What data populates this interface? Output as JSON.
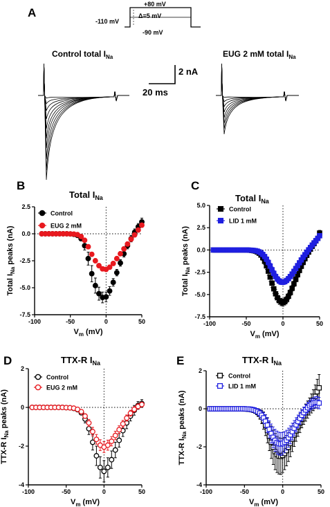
{
  "panelA": {
    "label": "A",
    "protocol": {
      "hold": "-110 mV",
      "prepulse": "-90 mV",
      "top": "+80 mV",
      "step": "Δ=5 mV"
    },
    "trace_left": {
      "title": "Control total I",
      "sub": "Na"
    },
    "trace_right": {
      "title": "EUG 2 mM total I",
      "sub": "Na"
    },
    "scale": {
      "current": "2 nA",
      "time": "20 ms"
    }
  },
  "chart_data": [
    {
      "panel": "B",
      "type": "scatter",
      "title": "Total I",
      "title_sub": "Na",
      "xlabel": "V",
      "xlabel_sub": "m",
      "xlabel_unit": " (mV)",
      "ylabel": "Total I",
      "ylabel_sub": "Na",
      "ylabel_unit": " peaks (nA)",
      "xlim": [
        -100,
        50
      ],
      "ylim": [
        -7.5,
        2.5
      ],
      "xticks": [
        -100,
        -50,
        0,
        50
      ],
      "yticks": [
        -7.5,
        -5.0,
        -2.5,
        0.0,
        2.5
      ],
      "ytick_labels": [
        "-7.5",
        "-5.0",
        "-2.5",
        "0.0",
        "2.5"
      ],
      "legend_position": "top-left",
      "grid": false,
      "zero_lines": true,
      "x": [
        -90,
        -85,
        -80,
        -75,
        -70,
        -65,
        -60,
        -55,
        -50,
        -45,
        -40,
        -35,
        -30,
        -25,
        -20,
        -15,
        -10,
        -5,
        0,
        5,
        10,
        15,
        20,
        25,
        30,
        35,
        40,
        45,
        50
      ],
      "series": [
        {
          "name": "Control",
          "color": "#000000",
          "marker": "circle-filled",
          "values": [
            0,
            0,
            0,
            0,
            0,
            0,
            0,
            0,
            -0.01,
            -0.05,
            -0.15,
            -0.45,
            -1.1,
            -2.3,
            -3.7,
            -4.8,
            -5.55,
            -5.9,
            -5.85,
            -5.3,
            -4.5,
            -3.6,
            -2.7,
            -1.85,
            -1.1,
            -0.45,
            0.15,
            0.65,
            1.1
          ],
          "err": [
            0,
            0,
            0,
            0,
            0,
            0,
            0,
            0,
            0.01,
            0.03,
            0.08,
            0.2,
            0.4,
            0.6,
            0.75,
            0.7,
            0.6,
            0.5,
            0.45,
            0.4,
            0.35,
            0.3,
            0.3,
            0.3,
            0.3,
            0.3,
            0.3,
            0.3,
            0.35
          ]
        },
        {
          "name": "EUG 2 mM",
          "color": "#e8191f",
          "marker": "circle-filled",
          "values": [
            0,
            0,
            0,
            0,
            0,
            0,
            0,
            0,
            -0.01,
            -0.03,
            -0.08,
            -0.25,
            -0.6,
            -1.2,
            -1.9,
            -2.5,
            -2.95,
            -3.25,
            -3.3,
            -3.1,
            -2.75,
            -2.3,
            -1.85,
            -1.4,
            -0.95,
            -0.5,
            -0.1,
            0.35,
            0.8
          ],
          "err": [
            0,
            0,
            0,
            0,
            0,
            0,
            0,
            0,
            0.01,
            0.02,
            0.05,
            0.1,
            0.15,
            0.2,
            0.2,
            0.2,
            0.2,
            0.2,
            0.2,
            0.2,
            0.2,
            0.2,
            0.2,
            0.2,
            0.2,
            0.2,
            0.2,
            0.2,
            0.2
          ]
        }
      ]
    },
    {
      "panel": "C",
      "type": "scatter",
      "title": "Total I",
      "title_sub": "Na",
      "xlabel": "V",
      "xlabel_sub": "m",
      "xlabel_unit": " (mV)",
      "ylabel": "Total I",
      "ylabel_sub": "Na",
      "ylabel_unit": " peaks (nA)",
      "xlim": [
        -100,
        50
      ],
      "ylim": [
        -7.5,
        5.0
      ],
      "xticks": [
        -100,
        -50,
        0,
        50
      ],
      "yticks": [
        -7.5,
        -5.0,
        -2.5,
        0.0,
        2.5,
        5.0
      ],
      "ytick_labels": [
        "-7.5",
        "-5.0",
        "-2.5",
        "0.0",
        "2.5",
        "5.0"
      ],
      "legend_position": "top-left",
      "grid": false,
      "zero_lines": true,
      "x": [
        -95,
        -92.5,
        -90,
        -87.5,
        -85,
        -82.5,
        -80,
        -77.5,
        -75,
        -72.5,
        -70,
        -67.5,
        -65,
        -62.5,
        -60,
        -57.5,
        -55,
        -52.5,
        -50,
        -47.5,
        -45,
        -42.5,
        -40,
        -37.5,
        -35,
        -32.5,
        -30,
        -27.5,
        -25,
        -22.5,
        -20,
        -17.5,
        -15,
        -12.5,
        -10,
        -7.5,
        -5,
        -2.5,
        0,
        2.5,
        5,
        7.5,
        10,
        12.5,
        15,
        17.5,
        20,
        22.5,
        25,
        27.5,
        30,
        32.5,
        35,
        37.5,
        40,
        42.5,
        45,
        47.5,
        50
      ],
      "series": [
        {
          "name": "Control",
          "color": "#000000",
          "marker": "square-filled",
          "values": [
            0,
            0,
            0,
            0,
            0,
            0,
            0,
            0,
            0,
            0,
            0,
            0,
            0,
            0,
            0,
            0,
            0,
            0,
            -0.01,
            -0.02,
            -0.03,
            -0.05,
            -0.08,
            -0.13,
            -0.22,
            -0.36,
            -0.57,
            -0.87,
            -1.27,
            -1.78,
            -2.38,
            -3.04,
            -3.72,
            -4.36,
            -4.92,
            -5.36,
            -5.68,
            -5.85,
            -5.9,
            -5.8,
            -5.55,
            -5.2,
            -4.78,
            -4.3,
            -3.8,
            -3.3,
            -2.78,
            -2.3,
            -1.83,
            -1.4,
            -0.98,
            -0.6,
            -0.24,
            0.1,
            0.42,
            0.72,
            1.02,
            1.3,
            1.9
          ],
          "err": [
            0,
            0,
            0,
            0,
            0,
            0,
            0,
            0,
            0,
            0,
            0,
            0,
            0,
            0,
            0,
            0,
            0,
            0,
            0,
            0.01,
            0.02,
            0.03,
            0.05,
            0.08,
            0.12,
            0.18,
            0.25,
            0.3,
            0.35,
            0.4,
            0.45,
            0.5,
            0.5,
            0.5,
            0.5,
            0.45,
            0.42,
            0.4,
            0.4,
            0.38,
            0.36,
            0.34,
            0.32,
            0.3,
            0.3,
            0.28,
            0.28,
            0.26,
            0.26,
            0.25,
            0.25,
            0.25,
            0.25,
            0.25,
            0.25,
            0.25,
            0.25,
            0.25,
            0.3
          ]
        },
        {
          "name": "LID 1 mM",
          "color": "#1f1fe0",
          "marker": "square-filled",
          "values": [
            0,
            0,
            0,
            0,
            0,
            0,
            0,
            0,
            0,
            0,
            0,
            0,
            0,
            0,
            0,
            0,
            0,
            0,
            0,
            -0.01,
            -0.02,
            -0.03,
            -0.05,
            -0.08,
            -0.13,
            -0.21,
            -0.33,
            -0.5,
            -0.74,
            -1.04,
            -1.4,
            -1.8,
            -2.22,
            -2.62,
            -2.98,
            -3.27,
            -3.48,
            -3.6,
            -3.62,
            -3.56,
            -3.42,
            -3.22,
            -2.98,
            -2.7,
            -2.4,
            -2.08,
            -1.76,
            -1.44,
            -1.12,
            -0.82,
            -0.53,
            -0.25,
            0.02,
            0.28,
            0.55,
            0.8,
            1.05,
            1.3,
            1.6
          ],
          "err": [
            0,
            0,
            0,
            0,
            0,
            0,
            0,
            0,
            0,
            0,
            0,
            0,
            0,
            0,
            0,
            0,
            0,
            0,
            0,
            0,
            0.01,
            0.02,
            0.03,
            0.05,
            0.08,
            0.12,
            0.16,
            0.2,
            0.25,
            0.28,
            0.3,
            0.32,
            0.32,
            0.32,
            0.3,
            0.3,
            0.28,
            0.28,
            0.28,
            0.27,
            0.26,
            0.25,
            0.24,
            0.23,
            0.22,
            0.22,
            0.21,
            0.2,
            0.2,
            0.2,
            0.2,
            0.2,
            0.2,
            0.2,
            0.2,
            0.2,
            0.2,
            0.2,
            0.25
          ]
        }
      ]
    },
    {
      "panel": "D",
      "type": "scatter",
      "title": "TTX-R I",
      "title_sub": "Na",
      "xlabel": "V",
      "xlabel_sub": "m",
      "xlabel_unit": " (mV)",
      "ylabel": "TTX-R I",
      "ylabel_sub": "Na",
      "ylabel_unit": " peaks (nA)",
      "xlim": [
        -100,
        50
      ],
      "ylim": [
        -4,
        2
      ],
      "xticks": [
        -100,
        -50,
        0,
        50
      ],
      "yticks": [
        -4,
        -2,
        0,
        2
      ],
      "ytick_labels": [
        "-4",
        "-2",
        "0",
        "2"
      ],
      "legend_position": "top-left",
      "grid": false,
      "zero_lines": true,
      "x": [
        -95,
        -90,
        -85,
        -80,
        -75,
        -70,
        -65,
        -60,
        -55,
        -50,
        -45,
        -40,
        -35,
        -30,
        -25,
        -20,
        -15,
        -10,
        -5,
        0,
        5,
        10,
        15,
        20,
        25,
        30,
        35,
        40,
        45,
        50
      ],
      "series": [
        {
          "name": "Control",
          "color": "#000000",
          "marker": "circle-open",
          "values": [
            0,
            0,
            0,
            0,
            0,
            0,
            0,
            0,
            0,
            -0.01,
            -0.02,
            -0.05,
            -0.12,
            -0.28,
            -0.6,
            -1.1,
            -1.8,
            -2.5,
            -3.1,
            -3.3,
            -3.1,
            -2.7,
            -2.2,
            -1.7,
            -1.2,
            -0.8,
            -0.45,
            -0.15,
            0.1,
            0.2
          ],
          "err": [
            0,
            0,
            0,
            0,
            0,
            0,
            0,
            0,
            0,
            0,
            0.01,
            0.02,
            0.05,
            0.1,
            0.2,
            0.3,
            0.4,
            0.5,
            0.55,
            0.55,
            0.5,
            0.45,
            0.4,
            0.35,
            0.3,
            0.3,
            0.25,
            0.25,
            0.2,
            0.2
          ]
        },
        {
          "name": "EUG 2 mM",
          "color": "#e8191f",
          "marker": "circle-open",
          "values": [
            0,
            0,
            0,
            0,
            0,
            0,
            0,
            0,
            0,
            -0.01,
            -0.02,
            -0.04,
            -0.1,
            -0.22,
            -0.45,
            -0.8,
            -1.25,
            -1.65,
            -1.95,
            -2.05,
            -1.95,
            -1.75,
            -1.45,
            -1.15,
            -0.85,
            -0.55,
            -0.3,
            -0.1,
            0.05,
            0.15
          ],
          "err": [
            0,
            0,
            0,
            0,
            0,
            0,
            0,
            0,
            0,
            0,
            0.01,
            0.02,
            0.04,
            0.08,
            0.12,
            0.18,
            0.22,
            0.25,
            0.28,
            0.28,
            0.26,
            0.24,
            0.22,
            0.2,
            0.18,
            0.16,
            0.15,
            0.14,
            0.13,
            0.12
          ]
        }
      ]
    },
    {
      "panel": "E",
      "type": "scatter",
      "title": "TTX-R I",
      "title_sub": "Na",
      "xlabel": "V",
      "xlabel_sub": "m",
      "xlabel_unit": " (mV)",
      "ylabel": "TTX-R I",
      "ylabel_sub": "Na",
      "ylabel_unit": " peaks (nA)",
      "xlim": [
        -100,
        50
      ],
      "ylim": [
        -4,
        2
      ],
      "xticks": [
        -100,
        -50,
        0,
        50
      ],
      "yticks": [
        -4,
        -2,
        0,
        2
      ],
      "ytick_labels": [
        "-4",
        "-2",
        "0",
        "2"
      ],
      "legend_position": "top-left",
      "grid": false,
      "zero_lines": true,
      "x": [
        -95,
        -92.5,
        -90,
        -87.5,
        -85,
        -82.5,
        -80,
        -77.5,
        -75,
        -72.5,
        -70,
        -67.5,
        -65,
        -62.5,
        -60,
        -57.5,
        -55,
        -52.5,
        -50,
        -47.5,
        -45,
        -42.5,
        -40,
        -37.5,
        -35,
        -32.5,
        -30,
        -27.5,
        -25,
        -22.5,
        -20,
        -17.5,
        -15,
        -12.5,
        -10,
        -7.5,
        -5,
        -2.5,
        0,
        2.5,
        5,
        7.5,
        10,
        12.5,
        15,
        17.5,
        20,
        22.5,
        25,
        27.5,
        30,
        32.5,
        35,
        37.5,
        40,
        42.5,
        45,
        47.5
      ],
      "series": [
        {
          "name": "Control",
          "color": "#000000",
          "marker": "square-open",
          "values": [
            0,
            0,
            0,
            0,
            0,
            0,
            0,
            0,
            0,
            0,
            0,
            0,
            0,
            0,
            0,
            0,
            0,
            0,
            -0.01,
            -0.01,
            -0.02,
            -0.03,
            -0.05,
            -0.08,
            -0.12,
            -0.19,
            -0.29,
            -0.43,
            -0.62,
            -0.86,
            -1.14,
            -1.45,
            -1.76,
            -2.03,
            -2.25,
            -2.4,
            -2.48,
            -2.5,
            -2.45,
            -2.35,
            -2.2,
            -2.02,
            -1.82,
            -1.6,
            -1.38,
            -1.16,
            -0.95,
            -0.75,
            -0.55,
            -0.37,
            -0.2,
            -0.04,
            0.12,
            0.28,
            0.45,
            0.65,
            0.9,
            1.1
          ],
          "err": [
            0,
            0,
            0,
            0,
            0,
            0,
            0,
            0,
            0,
            0,
            0,
            0,
            0,
            0,
            0,
            0,
            0,
            0,
            0.01,
            0.01,
            0.02,
            0.03,
            0.05,
            0.08,
            0.12,
            0.18,
            0.25,
            0.35,
            0.45,
            0.55,
            0.65,
            0.75,
            0.85,
            0.9,
            0.95,
            0.95,
            0.95,
            0.95,
            0.9,
            0.85,
            0.8,
            0.75,
            0.7,
            0.65,
            0.6,
            0.55,
            0.5,
            0.5,
            0.45,
            0.45,
            0.45,
            0.45,
            0.45,
            0.5,
            0.55,
            0.6,
            0.65,
            0.7
          ]
        },
        {
          "name": "LID 1 mM",
          "color": "#1f1fe0",
          "marker": "square-open",
          "values": [
            0,
            0,
            0,
            0,
            0,
            0,
            0,
            0,
            0,
            0,
            0,
            0,
            0,
            0,
            0,
            0,
            0,
            0,
            0,
            -0.01,
            -0.01,
            -0.02,
            -0.04,
            -0.06,
            -0.1,
            -0.15,
            -0.23,
            -0.34,
            -0.48,
            -0.66,
            -0.86,
            -1.08,
            -1.3,
            -1.5,
            -1.66,
            -1.77,
            -1.83,
            -1.85,
            -1.82,
            -1.75,
            -1.65,
            -1.52,
            -1.37,
            -1.2,
            -1.02,
            -0.84,
            -0.67,
            -0.5,
            -0.34,
            -0.2,
            -0.06,
            0.06,
            0.16,
            0.24,
            0.3,
            0.33,
            0.35,
            0.3
          ],
          "err": [
            0,
            0,
            0,
            0,
            0,
            0,
            0,
            0,
            0,
            0,
            0,
            0,
            0,
            0,
            0,
            0,
            0,
            0,
            0,
            0.01,
            0.01,
            0.02,
            0.03,
            0.05,
            0.08,
            0.12,
            0.16,
            0.22,
            0.28,
            0.34,
            0.4,
            0.45,
            0.5,
            0.55,
            0.58,
            0.6,
            0.6,
            0.6,
            0.58,
            0.55,
            0.52,
            0.5,
            0.47,
            0.44,
            0.4,
            0.37,
            0.34,
            0.32,
            0.3,
            0.29,
            0.28,
            0.28,
            0.28,
            0.28,
            0.28,
            0.3,
            0.3,
            0.3
          ]
        }
      ]
    }
  ]
}
